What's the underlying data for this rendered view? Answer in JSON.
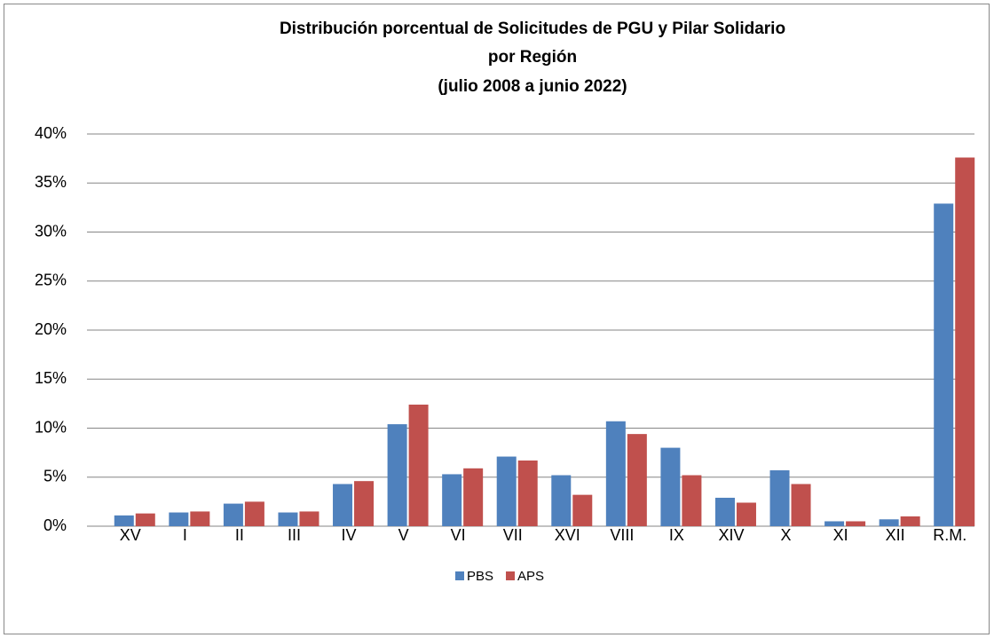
{
  "chart_data": {
    "type": "bar",
    "title": [
      "Distribución porcentual de Solicitudes de PGU y Pilar Solidario",
      "por Región",
      "(julio 2008 a junio 2022)"
    ],
    "categories": [
      "XV",
      "I",
      "II",
      "III",
      "IV",
      "V",
      "VI",
      "VII",
      "XVI",
      "VIII",
      "IX",
      "XIV",
      "X",
      "XI",
      "XII",
      "R.M."
    ],
    "series": [
      {
        "name": "PBS",
        "color": "#4f81bd",
        "values": [
          1.1,
          1.4,
          2.3,
          1.4,
          4.3,
          10.4,
          5.3,
          7.1,
          5.2,
          10.7,
          8.0,
          2.9,
          5.7,
          0.5,
          0.7,
          32.9
        ]
      },
      {
        "name": "APS",
        "color": "#c0504d",
        "values": [
          1.3,
          1.5,
          2.5,
          1.5,
          4.6,
          12.4,
          5.9,
          6.7,
          3.2,
          9.4,
          5.2,
          2.4,
          4.3,
          0.5,
          1.0,
          37.6
        ]
      }
    ],
    "ylim": [
      0,
      40
    ],
    "yticks": [
      {
        "value": 0,
        "label": "0%"
      },
      {
        "value": 5,
        "label": "5%"
      },
      {
        "value": 10,
        "label": "10%"
      },
      {
        "value": 15,
        "label": "15%"
      },
      {
        "value": 20,
        "label": "20%"
      },
      {
        "value": 25,
        "label": "25%"
      },
      {
        "value": 30,
        "label": "30%"
      },
      {
        "value": 35,
        "label": "35%"
      },
      {
        "value": 40,
        "label": "40%"
      }
    ],
    "grid": true,
    "legend": "bottom"
  }
}
